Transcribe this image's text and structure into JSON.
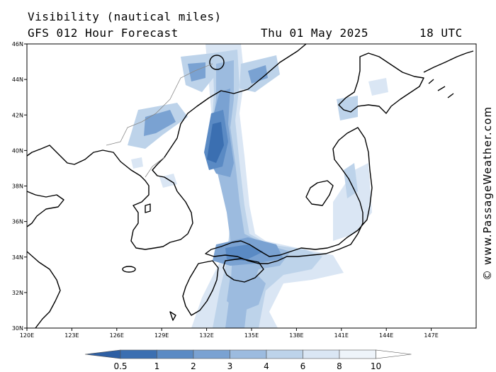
{
  "header": {
    "title": "Visibility (nautical miles)",
    "model": "GFS 012 Hour Forecast",
    "date": "Thu 01 May 2025",
    "time": "18 UTC"
  },
  "credit": "© www.PassageWeather.com",
  "map": {
    "lon_range": [
      120,
      150
    ],
    "lat_range": [
      30,
      46
    ],
    "lon_ticks": [
      {
        "value": 120,
        "label": "120E"
      },
      {
        "value": 123,
        "label": "123E"
      },
      {
        "value": 126,
        "label": "126E"
      },
      {
        "value": 129,
        "label": "129E"
      },
      {
        "value": 132,
        "label": "132E"
      },
      {
        "value": 135,
        "label": "135E"
      },
      {
        "value": 138,
        "label": "138E"
      },
      {
        "value": 141,
        "label": "141E"
      },
      {
        "value": 144,
        "label": "144E"
      },
      {
        "value": 147,
        "label": "147E"
      }
    ],
    "lat_ticks": [
      {
        "value": 30,
        "label": "30N"
      },
      {
        "value": 32,
        "label": "32N"
      },
      {
        "value": 34,
        "label": "34N"
      },
      {
        "value": 36,
        "label": "36N"
      },
      {
        "value": 38,
        "label": "38N"
      },
      {
        "value": 40,
        "label": "40N"
      },
      {
        "value": 42,
        "label": "42N"
      },
      {
        "value": 44,
        "label": "44N"
      },
      {
        "value": 46,
        "label": "46N"
      }
    ]
  },
  "legend": {
    "scale": [
      {
        "label": "0.5",
        "color": "#3b6fb1"
      },
      {
        "label": "1",
        "color": "#5a8ac4"
      },
      {
        "label": "2",
        "color": "#7aa2d2"
      },
      {
        "label": "3",
        "color": "#9cbbdf"
      },
      {
        "label": "4",
        "color": "#bdd3ea"
      },
      {
        "label": "6",
        "color": "#dae6f4"
      },
      {
        "label": "8",
        "color": "#eef4fa"
      },
      {
        "label": "10",
        "color": "#ffffff"
      }
    ],
    "low_color": "#2e5fa3"
  }
}
